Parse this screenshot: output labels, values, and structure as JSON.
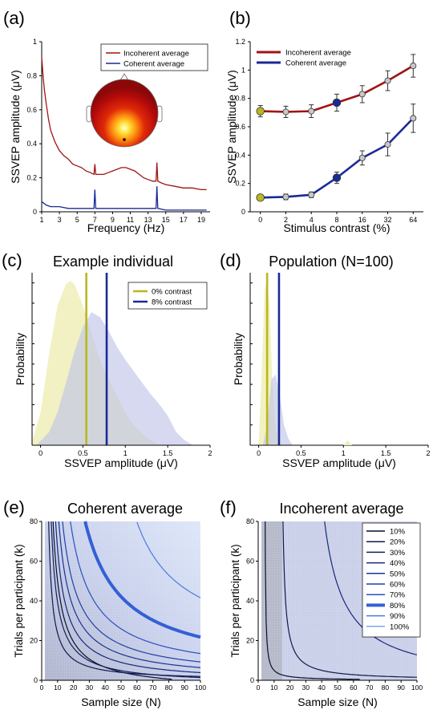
{
  "chart_data": [
    {
      "panel": "(a)",
      "type": "line",
      "xlabel": "Frequency (Hz)",
      "ylabel": "SSVEP amplitude (μV)",
      "xlim": [
        1,
        20
      ],
      "ylim": [
        0,
        1
      ],
      "xticks": [
        1,
        3,
        5,
        7,
        9,
        11,
        13,
        15,
        17,
        19
      ],
      "yticks": [
        0,
        0.2,
        0.4,
        0.6,
        0.8,
        1
      ],
      "ytick_labels": [
        "0",
        "0.2",
        "0.4",
        "0.6",
        "0.8",
        "1"
      ],
      "legend_position": "top-right",
      "series": [
        {
          "name": "Incoherent average",
          "color": "#a01414",
          "x": [
            1,
            1.15,
            1.3,
            1.5,
            1.75,
            2,
            2.5,
            3,
            3.5,
            4,
            4.5,
            5,
            5.5,
            6,
            6.5,
            6.9,
            7,
            7.1,
            7.5,
            8,
            8.5,
            9,
            9.5,
            10,
            10.5,
            11,
            11.5,
            12,
            12.5,
            13,
            13.5,
            13.9,
            14,
            14.1,
            14.5,
            15,
            16,
            17,
            18,
            19,
            19.6
          ],
          "y": [
            0.91,
            0.8,
            0.72,
            0.64,
            0.55,
            0.48,
            0.41,
            0.36,
            0.33,
            0.31,
            0.28,
            0.27,
            0.26,
            0.24,
            0.23,
            0.22,
            0.28,
            0.22,
            0.22,
            0.22,
            0.23,
            0.24,
            0.25,
            0.26,
            0.26,
            0.25,
            0.24,
            0.22,
            0.2,
            0.19,
            0.18,
            0.18,
            0.29,
            0.18,
            0.17,
            0.16,
            0.15,
            0.14,
            0.14,
            0.13,
            0.13
          ]
        },
        {
          "name": "Coherent average",
          "color": "#1a2a96",
          "x": [
            1,
            1.5,
            2,
            3,
            4,
            5,
            6,
            6.9,
            7,
            7.1,
            8,
            9,
            10,
            11,
            12,
            13,
            13.9,
            14,
            14.1,
            15,
            16,
            17,
            18,
            19,
            19.6
          ],
          "y": [
            0.06,
            0.04,
            0.03,
            0.03,
            0.02,
            0.02,
            0.02,
            0.02,
            0.13,
            0.02,
            0.02,
            0.02,
            0.02,
            0.02,
            0.02,
            0.02,
            0.02,
            0.15,
            0.02,
            0.01,
            0.01,
            0.01,
            0.01,
            0.01,
            0.01
          ]
        }
      ],
      "inset": "scalp topography map"
    },
    {
      "panel": "(b)",
      "type": "line",
      "xlabel": "Stimulus contrast (%)",
      "ylabel": "SSVEP amplitude (μV)",
      "categories": [
        "0",
        "2",
        "4",
        "8",
        "16",
        "32",
        "64"
      ],
      "ylim": [
        0,
        1.2
      ],
      "yticks": [
        0,
        0.2,
        0.4,
        0.6,
        0.8,
        1,
        1.2
      ],
      "ytick_labels": [
        "0",
        "0.2",
        "0.4",
        "0.6",
        "0.8",
        "1",
        "1.2"
      ],
      "legend_position": "top-left",
      "series": [
        {
          "name": "Incoherent average",
          "color": "#a01414",
          "values": [
            0.71,
            0.705,
            0.71,
            0.77,
            0.83,
            0.925,
            1.03
          ],
          "error": [
            0.04,
            0.04,
            0.045,
            0.06,
            0.06,
            0.07,
            0.08
          ]
        },
        {
          "name": "Coherent average",
          "color": "#1a2a96",
          "values": [
            0.1,
            0.105,
            0.12,
            0.24,
            0.38,
            0.475,
            0.66
          ],
          "error": [
            0.015,
            0.02,
            0.02,
            0.04,
            0.05,
            0.08,
            0.1
          ]
        }
      ],
      "highlighted_points": [
        {
          "series": "Incoherent average",
          "category": "0",
          "color": "#b8b820"
        },
        {
          "series": "Incoherent average",
          "category": "8",
          "color": "#1a2a96"
        },
        {
          "series": "Coherent average",
          "category": "0",
          "color": "#b8b820"
        },
        {
          "series": "Coherent average",
          "category": "8",
          "color": "#1a2a96"
        }
      ]
    },
    {
      "panel": "(c)",
      "type": "area",
      "title": "Example individual",
      "xlabel": "SSVEP amplitude (μV)",
      "ylabel": "Probability",
      "xlim": [
        -0.1,
        2
      ],
      "xticks": [
        0,
        0.5,
        1,
        1.5,
        2
      ],
      "xtick_labels": [
        "0",
        "0.5",
        "1",
        "1.5",
        "2"
      ],
      "legend_position": "top-right",
      "series": [
        {
          "name": "0% contrast",
          "color": "#b8b820",
          "fill": "#eeeeb8",
          "x": [
            -0.1,
            0,
            0.1,
            0.2,
            0.3,
            0.35,
            0.4,
            0.5,
            0.6,
            0.7,
            0.8,
            0.9,
            1.0,
            1.1,
            1.2,
            1.3,
            1.4
          ],
          "density": [
            0.02,
            0.2,
            0.55,
            0.85,
            0.98,
            1.0,
            0.98,
            0.85,
            0.68,
            0.52,
            0.4,
            0.3,
            0.2,
            0.12,
            0.07,
            0.03,
            0.0
          ],
          "line": 0.54
        },
        {
          "name": "8% contrast",
          "color": "#1a2a96",
          "fill": "#c0c4e8",
          "x": [
            -0.05,
            0.1,
            0.2,
            0.3,
            0.4,
            0.5,
            0.6,
            0.7,
            0.8,
            0.9,
            1.0,
            1.1,
            1.2,
            1.3,
            1.4,
            1.5,
            1.6,
            1.7,
            1.8
          ],
          "density": [
            0.0,
            0.08,
            0.2,
            0.38,
            0.57,
            0.72,
            0.81,
            0.78,
            0.7,
            0.6,
            0.52,
            0.45,
            0.38,
            0.31,
            0.25,
            0.18,
            0.08,
            0.03,
            0.0
          ],
          "line": 0.78
        }
      ]
    },
    {
      "panel": "(d)",
      "type": "area",
      "title": "Population (N=100)",
      "xlabel": "SSVEP amplitude (μV)",
      "ylabel": "Probability",
      "xlim": [
        -0.1,
        2
      ],
      "xticks": [
        0,
        0.5,
        1,
        1.5,
        2
      ],
      "xtick_labels": [
        "0",
        "0.5",
        "1",
        "1.5",
        "2"
      ],
      "series": [
        {
          "name": "0% contrast",
          "color": "#b8b820",
          "fill": "#eeeeb8",
          "x": [
            0.0,
            0.04,
            0.07,
            0.1,
            0.13,
            0.16,
            0.2,
            0.25
          ],
          "density": [
            0.0,
            0.5,
            0.95,
            1.0,
            0.85,
            0.4,
            0.1,
            0.0
          ],
          "line": 0.1
        },
        {
          "name": "8% contrast",
          "color": "#1a2a96",
          "fill": "#c0c4e8",
          "x": [
            0.05,
            0.1,
            0.15,
            0.2,
            0.25,
            0.3,
            0.35,
            0.4
          ],
          "density": [
            0.0,
            0.12,
            0.4,
            0.43,
            0.3,
            0.12,
            0.04,
            0.0
          ],
          "line": 0.24
        }
      ]
    },
    {
      "panel": "(e)",
      "type": "line",
      "title": "Coherent average",
      "xlabel": "Sample size (N)",
      "ylabel": "Trials per participant (k)",
      "xlim": [
        0,
        100
      ],
      "ylim": [
        0,
        80
      ],
      "xticks": [
        0,
        10,
        20,
        30,
        40,
        50,
        60,
        70,
        80,
        90,
        100
      ],
      "yticks": [
        0,
        20,
        40,
        60,
        80
      ],
      "series": [
        {
          "name": "10%",
          "c": 440,
          "n0": 2,
          "k0": -5,
          "color": "#0a0f2a",
          "width": 1.2
        },
        {
          "name": "20%",
          "c": 190,
          "n0": 2,
          "k0": 0,
          "color": "#101a4a",
          "width": 1.2
        },
        {
          "name": "30%",
          "c": 330,
          "n0": 2,
          "k0": -2,
          "color": "#121f5e",
          "width": 1.2
        },
        {
          "name": "40%",
          "c": 470,
          "n0": 3,
          "k0": -1,
          "color": "#162878",
          "width": 1.2
        },
        {
          "name": "50%",
          "c": 620,
          "n0": 3,
          "k0": 0,
          "color": "#1a3391",
          "width": 1.2
        },
        {
          "name": "60%",
          "c": 800,
          "n0": 3,
          "k0": 1,
          "color": "#1f3fa8",
          "width": 1.2
        },
        {
          "name": "70%",
          "c": 1100,
          "n0": 4,
          "k0": 2,
          "color": "#2a4fc0",
          "width": 1.2
        },
        {
          "name": "80%",
          "c": 1800,
          "n0": 4,
          "k0": 3,
          "color": "#3360d4",
          "width": 4
        },
        {
          "name": "90%",
          "c": 2000,
          "n0": 30,
          "k0": 13,
          "color": "#4a7ae0",
          "width": 1.2
        }
      ]
    },
    {
      "panel": "(f)",
      "type": "line",
      "title": "Incoherent average",
      "xlabel": "Sample size (N)",
      "ylabel": "Trials per participant (k)",
      "xlim": [
        0,
        100
      ],
      "ylim": [
        0,
        80
      ],
      "xticks": [
        0,
        10,
        20,
        30,
        40,
        50,
        60,
        70,
        80,
        90,
        100
      ],
      "yticks": [
        0,
        20,
        40,
        60,
        80
      ],
      "legend_position": "top-right",
      "legend": [
        {
          "label": "10%",
          "color": "#0a0f2a",
          "width": 1.2
        },
        {
          "label": "20%",
          "color": "#101a4a",
          "width": 1.2
        },
        {
          "label": "30%",
          "color": "#121f5e",
          "width": 1.2
        },
        {
          "label": "40%",
          "color": "#162878",
          "width": 1.2
        },
        {
          "label": "50%",
          "color": "#1a3391",
          "width": 1.2
        },
        {
          "label": "60%",
          "color": "#1f3fa8",
          "width": 1.2
        },
        {
          "label": "70%",
          "color": "#2a4fc0",
          "width": 1.2
        },
        {
          "label": "80%",
          "color": "#3360d4",
          "width": 4
        },
        {
          "label": "90%",
          "color": "#4a7ae0",
          "width": 1.2
        },
        {
          "label": "100%",
          "color": "#7aa8f0",
          "width": 1.2
        }
      ],
      "series": [
        {
          "name": "10%",
          "c": 30,
          "n0": 4,
          "k0": 0,
          "color": "#0a0f2a",
          "width": 1.2
        },
        {
          "name": "20%",
          "c": 130,
          "n0": 14,
          "k0": 0,
          "color": "#101a4a",
          "width": 1.2
        },
        {
          "name": "30%",
          "c": 1050,
          "n0": 29,
          "k0": -2,
          "color": "#162878",
          "width": 1.2
        }
      ]
    }
  ]
}
